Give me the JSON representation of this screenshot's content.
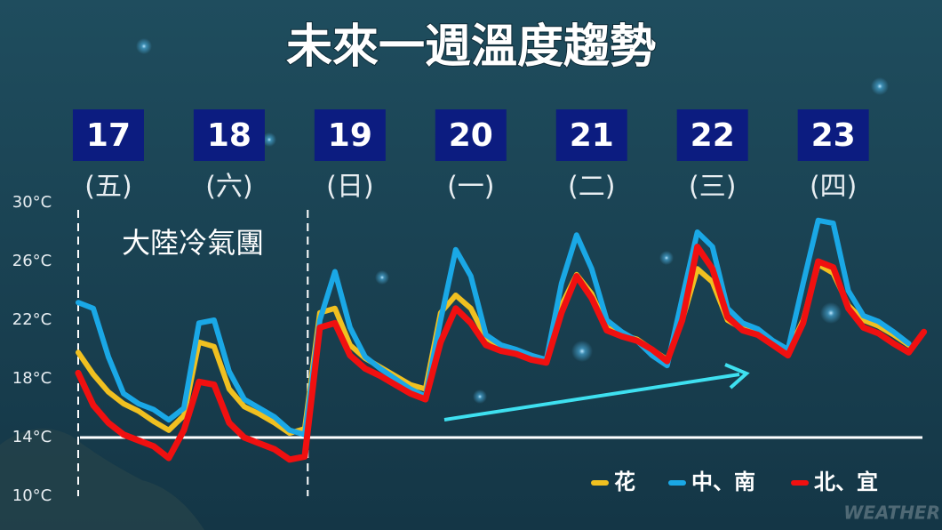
{
  "chart_data": {
    "type": "line",
    "title": "未來一週溫度趨勢",
    "x": [
      16.75,
      16.875,
      17,
      17.125,
      17.25,
      17.375,
      17.5,
      17.625,
      17.75,
      17.875,
      18,
      18.125,
      18.25,
      18.375,
      18.5,
      18.625,
      18.75,
      18.875,
      19,
      19.125,
      19.25,
      19.375,
      19.5,
      19.625,
      19.75,
      19.875,
      20,
      20.125,
      20.25,
      20.375,
      20.5,
      20.625,
      20.75,
      20.875,
      21,
      21.125,
      21.25,
      21.375,
      21.5,
      21.625,
      21.75,
      21.875,
      22,
      22.125,
      22.25,
      22.375,
      22.5,
      22.625,
      22.75,
      22.875,
      23,
      23.125,
      23.25,
      23.375,
      23.5,
      23.625,
      23.75
    ],
    "series": [
      {
        "name": "花",
        "color": "#f0c020",
        "values": [
          19.8,
          18.3,
          17.1,
          16.3,
          15.8,
          15.1,
          14.5,
          15.5,
          20.5,
          20.2,
          17.3,
          16.1,
          15.6,
          15.0,
          14.3,
          14.6,
          22.5,
          22.8,
          20.3,
          19.4,
          18.8,
          18.2,
          17.6,
          17.3,
          22.5,
          23.7,
          22.8,
          20.8,
          20.2,
          19.9,
          19.5,
          19.2,
          23.0,
          25.1,
          23.8,
          21.5,
          21.0,
          20.7,
          20.0,
          19.3,
          22.0,
          25.5,
          24.6,
          22.0,
          21.4,
          21.1,
          20.5,
          19.8,
          22.0,
          25.8,
          25.2,
          23.0,
          22.0,
          21.6,
          21.0,
          20.3,
          null
        ]
      },
      {
        "name": "中、南",
        "color": "#1aa8e6",
        "values": [
          23.2,
          22.8,
          19.5,
          17.0,
          16.3,
          15.9,
          15.2,
          16.0,
          21.8,
          22.0,
          18.5,
          16.6,
          16.0,
          15.4,
          14.5,
          14.2,
          22.0,
          25.3,
          21.5,
          19.5,
          18.7,
          18.0,
          17.3,
          16.8,
          22.0,
          26.8,
          25.0,
          21.0,
          20.3,
          20.0,
          19.6,
          19.3,
          24.5,
          27.8,
          25.5,
          22.0,
          21.2,
          20.6,
          19.6,
          18.9,
          23.5,
          28.0,
          27.0,
          22.8,
          21.8,
          21.4,
          20.6,
          20.0,
          24.5,
          28.8,
          28.6,
          24.0,
          22.3,
          21.9,
          21.2,
          20.4,
          null
        ]
      },
      {
        "name": "北、宜",
        "color": "#f01010",
        "values": [
          18.4,
          16.2,
          15.0,
          14.2,
          13.8,
          13.4,
          12.6,
          14.5,
          17.8,
          17.6,
          15.0,
          14.0,
          13.6,
          13.2,
          12.5,
          12.7,
          21.5,
          21.8,
          19.6,
          18.7,
          18.2,
          17.6,
          17.0,
          16.6,
          20.5,
          22.8,
          21.8,
          20.3,
          19.9,
          19.7,
          19.3,
          19.1,
          22.5,
          25.0,
          23.5,
          21.3,
          20.9,
          20.6,
          20.0,
          19.2,
          22.0,
          27.0,
          25.5,
          22.2,
          21.3,
          21.0,
          20.3,
          19.6,
          21.8,
          26.0,
          25.6,
          22.8,
          21.5,
          21.1,
          20.4,
          19.8,
          21.2
        ]
      }
    ],
    "xlim": [
      16.5,
      23.9
    ],
    "xticks": [
      17,
      18,
      19,
      20,
      21,
      22,
      23
    ],
    "xtick_sublabels": [
      "(五)",
      "(六)",
      "(日)",
      "(一)",
      "(二)",
      "(三)",
      "(四)"
    ],
    "ylim": [
      10,
      30
    ],
    "yticks": [
      {
        "value": 10,
        "label": "10°C"
      },
      {
        "value": 14,
        "label": "14°C"
      },
      {
        "value": 18,
        "label": "18°C"
      },
      {
        "value": 22,
        "label": "22°C"
      },
      {
        "value": 26,
        "label": "26°C"
      },
      {
        "value": 30,
        "label": "30°C"
      }
    ],
    "reference_line": 14,
    "annotation": {
      "text": "大陸冷氣團",
      "span": [
        16.75,
        18.65
      ]
    },
    "legend": "bottom-right",
    "watermark": "WEATHER"
  }
}
